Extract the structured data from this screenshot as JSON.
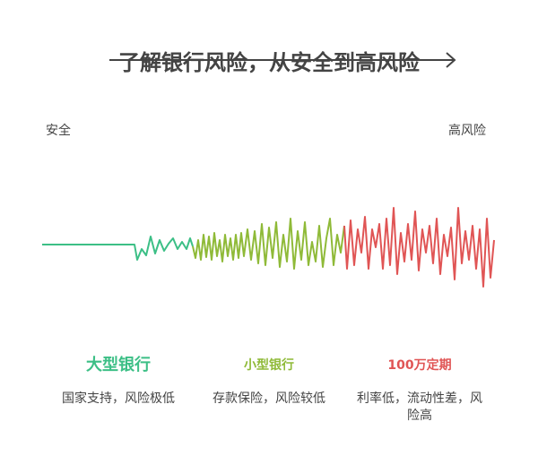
{
  "title": "了解银行风险，从安全到高风险",
  "left_label": "安全",
  "right_label": "高风险",
  "segments": [
    {
      "title": "大型银行",
      "description": "国家支持，风险极低"
    },
    {
      "title": "小型银行",
      "description": "存款保险，风险较低"
    },
    {
      "title": "100万定期",
      "description": "利率低，流动性差，风险高"
    }
  ]
}
